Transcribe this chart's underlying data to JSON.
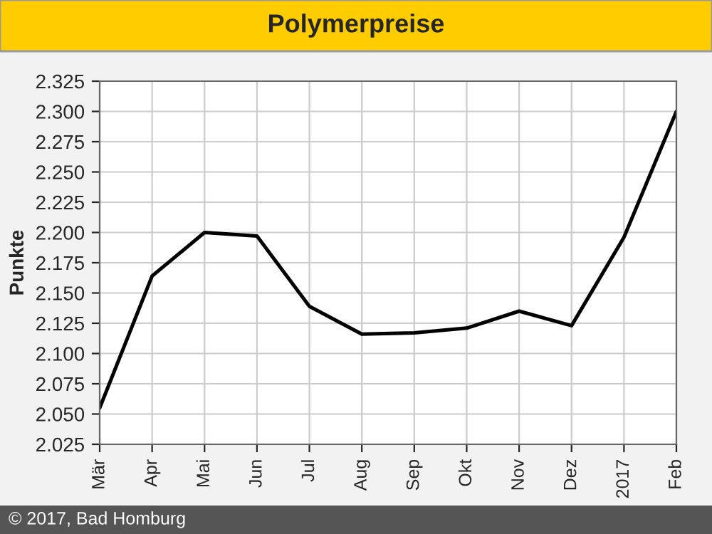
{
  "chart_data": {
    "type": "line",
    "title": "Polymerpreise",
    "ylabel": "Punkte",
    "categories": [
      "Mär",
      "Apr",
      "Mai",
      "Jun",
      "Jul",
      "Aug",
      "Sep",
      "Okt",
      "Nov",
      "Dez",
      "2017",
      "Feb"
    ],
    "series": [
      {
        "color": "#000000",
        "values": [
          2.055,
          2.164,
          2.2,
          2.197,
          2.139,
          2.116,
          2.117,
          2.121,
          2.135,
          2.123,
          2.196,
          2.3
        ]
      }
    ],
    "ylim": [
      2.025,
      2.325
    ],
    "yticks": [
      {
        "value": 2.025,
        "label": "2.025"
      },
      {
        "value": 2.05,
        "label": "2.050"
      },
      {
        "value": 2.075,
        "label": "2.075"
      },
      {
        "value": 2.1,
        "label": "2.100"
      },
      {
        "value": 2.125,
        "label": "2.125"
      },
      {
        "value": 2.15,
        "label": "2.150"
      },
      {
        "value": 2.175,
        "label": "2.175"
      },
      {
        "value": 2.2,
        "label": "2.200"
      },
      {
        "value": 2.225,
        "label": "2.225"
      },
      {
        "value": 2.25,
        "label": "2.250"
      },
      {
        "value": 2.275,
        "label": "2.275"
      },
      {
        "value": 2.3,
        "label": "2.300"
      },
      {
        "value": 2.325,
        "label": "2.325"
      }
    ],
    "grid": true,
    "line_style": "solid",
    "marker": "none",
    "annotations": [
      "© 2017, Bad Homburg"
    ]
  }
}
